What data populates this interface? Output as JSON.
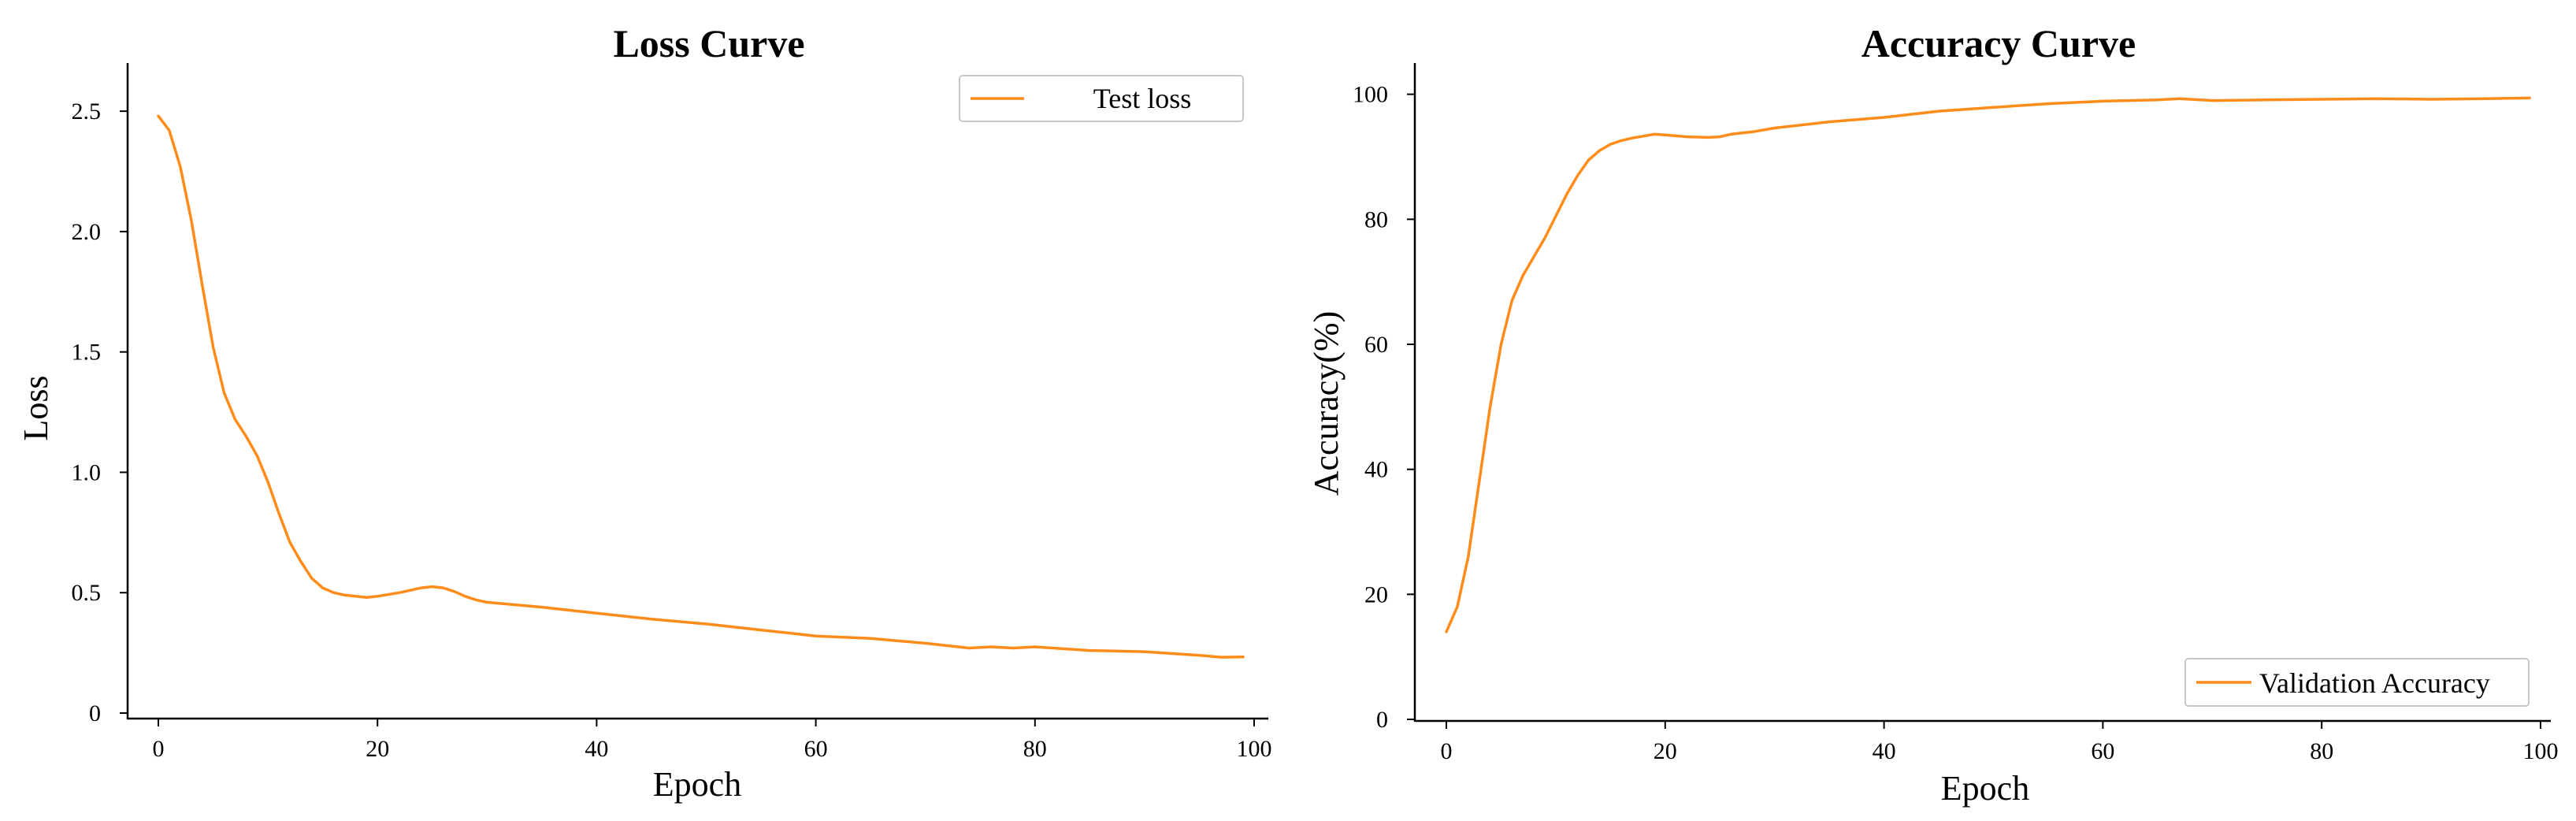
{
  "chart_data": [
    {
      "type": "line",
      "title": "Loss Curve",
      "xlabel": "Epoch",
      "ylabel": "Loss",
      "xlim": [
        0,
        100
      ],
      "ylim": [
        0,
        2.7
      ],
      "xticks": [
        0,
        20,
        40,
        60,
        80,
        100
      ],
      "xtick_labels": [
        "0",
        "20",
        "40",
        "60",
        "80",
        "100"
      ],
      "yticks": [
        0,
        0.5,
        1.0,
        1.5,
        2.0,
        2.5
      ],
      "ytick_labels": [
        "0",
        "0.5",
        "1.0",
        "1.5",
        "2.0",
        "2.5"
      ],
      "grid": false,
      "legend_position": "top-right",
      "series": [
        {
          "name": "Test loss",
          "color": "#ff8c1a",
          "x": [
            0,
            1,
            2,
            3,
            4,
            5,
            6,
            7,
            8,
            9,
            10,
            11,
            12,
            13,
            14,
            15,
            16,
            17,
            18,
            19,
            20,
            22,
            24,
            25,
            26,
            27,
            28,
            29,
            30,
            35,
            40,
            45,
            50,
            55,
            60,
            65,
            70,
            74,
            76,
            78,
            80,
            85,
            90,
            95,
            97,
            99
          ],
          "values": [
            2.48,
            2.42,
            2.27,
            2.05,
            1.78,
            1.52,
            1.33,
            1.22,
            1.15,
            1.07,
            0.96,
            0.83,
            0.71,
            0.63,
            0.56,
            0.52,
            0.5,
            0.49,
            0.485,
            0.48,
            0.485,
            0.5,
            0.52,
            0.525,
            0.52,
            0.505,
            0.485,
            0.47,
            0.46,
            0.44,
            0.415,
            0.39,
            0.37,
            0.345,
            0.32,
            0.31,
            0.29,
            0.27,
            0.275,
            0.27,
            0.275,
            0.26,
            0.255,
            0.24,
            0.232,
            0.233
          ]
        }
      ]
    },
    {
      "type": "line",
      "title": "Accuracy Curve",
      "xlabel": "Epoch",
      "ylabel": "Accuracy(%)",
      "xlim": [
        0,
        100
      ],
      "ylim": [
        0,
        105
      ],
      "xticks": [
        0,
        20,
        40,
        60,
        80,
        100
      ],
      "xtick_labels": [
        "0",
        "20",
        "40",
        "60",
        "80",
        "100"
      ],
      "yticks": [
        0,
        20,
        40,
        60,
        80,
        100
      ],
      "ytick_labels": [
        "0",
        "20",
        "40",
        "60",
        "80",
        "100"
      ],
      "grid": false,
      "legend_position": "bottom-right",
      "series": [
        {
          "name": "Validation Accuracy",
          "color": "#ff8c1a",
          "x": [
            0,
            1,
            2,
            3,
            4,
            5,
            6,
            7,
            8,
            9,
            10,
            11,
            12,
            13,
            14,
            15,
            16,
            17,
            18,
            19,
            20,
            22,
            24,
            25,
            26,
            28,
            30,
            35,
            40,
            45,
            50,
            55,
            60,
            65,
            67,
            70,
            75,
            80,
            85,
            90,
            95,
            99
          ],
          "values": [
            14,
            18,
            26,
            38,
            50,
            60,
            67,
            71,
            74,
            77,
            80.5,
            84,
            87,
            89.5,
            91,
            92,
            92.6,
            93,
            93.3,
            93.6,
            93.5,
            93.2,
            93.1,
            93.2,
            93.6,
            94,
            94.6,
            95.6,
            96.3,
            97.3,
            97.9,
            98.5,
            98.9,
            99.1,
            99.3,
            99.0,
            99.1,
            99.2,
            99.3,
            99.2,
            99.3,
            99.4
          ]
        }
      ]
    }
  ]
}
